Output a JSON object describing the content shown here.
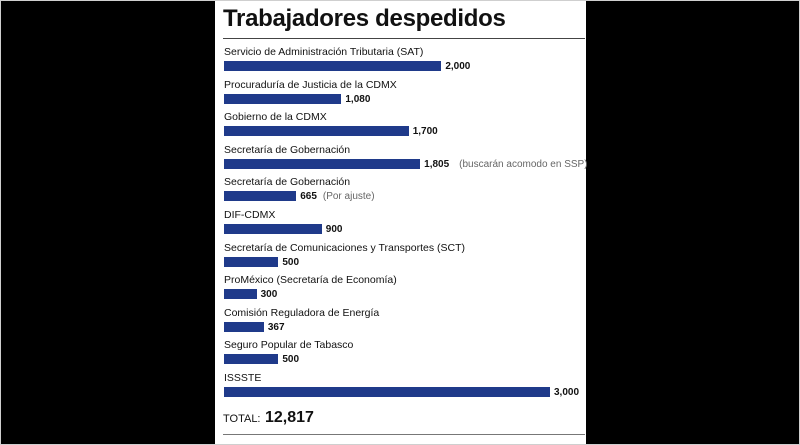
{
  "chart_data": {
    "type": "bar",
    "orientation": "horizontal",
    "title": "Trabajadores despedidos",
    "categories": [
      "Servicio de Administración Tributaria (SAT)",
      "Procuraduría de Justicia de la CDMX",
      "Gobierno de la CDMX",
      "Secretaría de Gobernación",
      "Secretaría de Gobernación",
      "DIF-CDMX",
      "Secretaría de Comunicaciones y Transportes (SCT)",
      "ProMéxico (Secretaría de Economía)",
      "Comisión Reguladora de Energía",
      "Seguro Popular de Tabasco",
      "ISSSTE"
    ],
    "values": [
      2000,
      1080,
      1700,
      1805,
      665,
      900,
      500,
      300,
      367,
      500,
      3000
    ],
    "value_labels": [
      "2,000",
      "1,080",
      "1,700",
      "1,805",
      "665",
      "900",
      "500",
      "300",
      "367",
      "500",
      "3,000"
    ],
    "notes": [
      "",
      "",
      "",
      "(buscarán acomodo en SSP)",
      "(Por ajuste)",
      "",
      "",
      "",
      "",
      "",
      ""
    ],
    "xlim": [
      0,
      3000
    ],
    "grid": false,
    "bar_color": "#1f3a8a"
  },
  "total": {
    "label": "TOTAL:",
    "value": "12,817"
  }
}
